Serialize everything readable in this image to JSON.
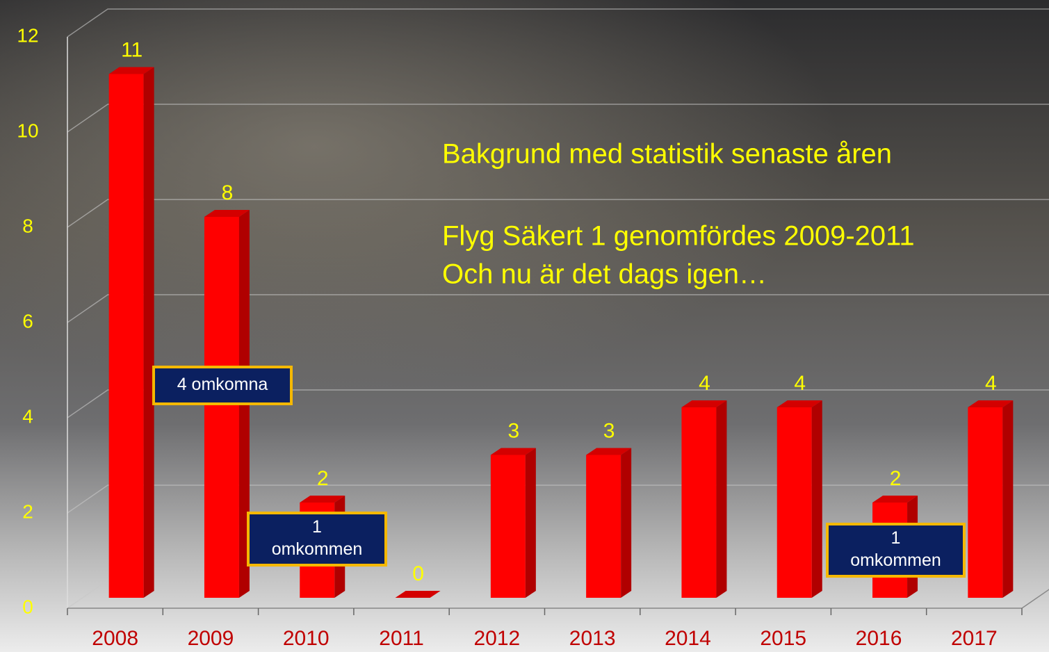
{
  "chart_data": {
    "type": "bar3d",
    "categories": [
      "2008",
      "2009",
      "2010",
      "2011",
      "2012",
      "2013",
      "2014",
      "2015",
      "2016",
      "2017"
    ],
    "values": [
      11,
      8,
      2,
      0,
      3,
      3,
      4,
      4,
      2,
      4
    ],
    "color": "#ff0000",
    "ylim": [
      0,
      12
    ],
    "yticks": [
      0,
      2,
      4,
      6,
      8,
      10,
      12
    ],
    "grid": true,
    "annotations": [
      "Bakgrund med statistik senaste åren",
      "Flyg Säkert 1 genomfördes 2009-2011",
      "Och nu är det dags igen…"
    ],
    "callouts": [
      [
        "4 omkomna"
      ],
      [
        "1",
        "omkommen"
      ],
      [
        "1",
        "omkommen"
      ]
    ]
  }
}
